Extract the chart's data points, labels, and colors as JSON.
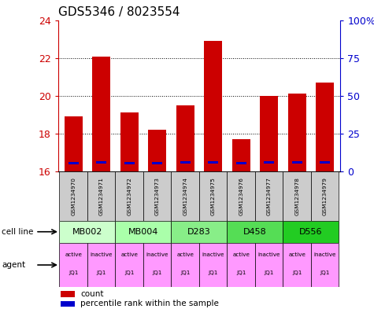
{
  "title": "GDS5346 / 8023554",
  "samples": [
    "GSM1234970",
    "GSM1234971",
    "GSM1234972",
    "GSM1234973",
    "GSM1234974",
    "GSM1234975",
    "GSM1234976",
    "GSM1234977",
    "GSM1234978",
    "GSM1234979"
  ],
  "red_values": [
    18.9,
    22.05,
    19.1,
    18.2,
    19.5,
    22.9,
    17.7,
    20.0,
    20.1,
    20.7
  ],
  "blue_values": [
    16.45,
    16.5,
    16.45,
    16.45,
    16.47,
    16.5,
    16.43,
    16.47,
    16.47,
    16.47
  ],
  "ylim": [
    16,
    24
  ],
  "yticks_left": [
    16,
    18,
    20,
    22,
    24
  ],
  "yticks_right": [
    0,
    25,
    50,
    75,
    100
  ],
  "cell_lines_data": [
    {
      "label": "MB002",
      "cols": [
        0,
        1
      ],
      "color": "#ccffcc"
    },
    {
      "label": "MB004",
      "cols": [
        2,
        3
      ],
      "color": "#aaffaa"
    },
    {
      "label": "D283",
      "cols": [
        4,
        5
      ],
      "color": "#88ee88"
    },
    {
      "label": "D458",
      "cols": [
        6,
        7
      ],
      "color": "#55dd55"
    },
    {
      "label": "D556",
      "cols": [
        8,
        9
      ],
      "color": "#22cc22"
    }
  ],
  "agent_color": "#ff99ff",
  "bar_color": "#cc0000",
  "blue_color": "#0000cc",
  "axis_label_color_left": "#cc0000",
  "axis_label_color_right": "#0000cc",
  "sample_box_color": "#cccccc",
  "legend_red": "count",
  "legend_blue": "percentile rank within the sample",
  "grid_yticks": [
    18,
    20,
    22
  ]
}
